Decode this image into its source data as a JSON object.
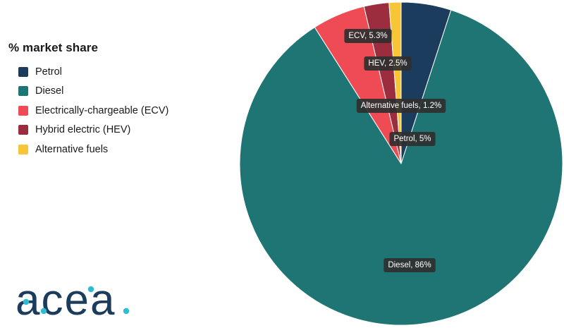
{
  "legend": {
    "title": "% market share"
  },
  "chart_data": {
    "type": "pie",
    "title": "% market share",
    "unit": "%",
    "slices": [
      {
        "name": "Petrol",
        "value": 5,
        "label": "Petrol, 5%",
        "color": "#1b3c5c"
      },
      {
        "name": "Diesel",
        "value": 86,
        "label": "Diesel, 86%",
        "color": "#1e7574"
      },
      {
        "name": "Electrically-chargeable (ECV)",
        "value": 5.3,
        "label": "ECV, 5.3%",
        "color": "#ef4b55"
      },
      {
        "name": "Hybrid electric (HEV)",
        "value": 2.5,
        "label": "HEV, 2.5%",
        "color": "#9b2d3f"
      },
      {
        "name": "Alternative fuels",
        "value": 1.2,
        "label": "Alternative fuels, 1.2%",
        "color": "#f7c636"
      }
    ]
  },
  "logo": {
    "text": "acea",
    "text_color": "#1b3c5c",
    "dot_color": "#2dbcd2"
  }
}
